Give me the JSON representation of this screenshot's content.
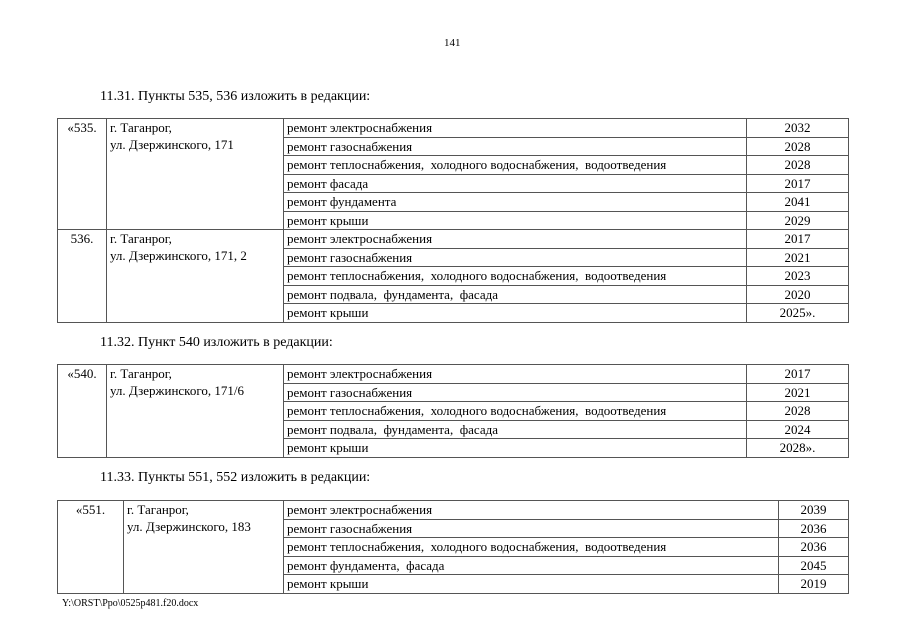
{
  "page_number": "141",
  "footer": "Y:\\ORST\\Ppo\\0525p481.f20.docx",
  "sections": [
    {
      "heading": "11.31. Пункты 535, 536 изложить в редакции:",
      "items": [
        {
          "num": "«535.",
          "address": [
            "г. Таганрог,",
            "ул. Дзержинского, 171"
          ],
          "works": [
            {
              "name": "ремонт электроснабжения",
              "year": "2032"
            },
            {
              "name": "ремонт газоснабжения",
              "year": "2028"
            },
            {
              "name": "ремонт теплоснабжения,  холодного водоснабжения,  водоотведения",
              "year": "2028"
            },
            {
              "name": "ремонт фасада",
              "year": "2017"
            },
            {
              "name": "ремонт фундамента",
              "year": "2041"
            },
            {
              "name": "ремонт крыши",
              "year": "2029"
            }
          ]
        },
        {
          "num": "536.",
          "address": [
            "г. Таганрог,",
            "ул. Дзержинского, 171, 2"
          ],
          "works": [
            {
              "name": "ремонт электроснабжения",
              "year": "2017"
            },
            {
              "name": "ремонт газоснабжения",
              "year": "2021"
            },
            {
              "name": "ремонт теплоснабжения,  холодного водоснабжения,  водоотведения",
              "year": "2023"
            },
            {
              "name": "ремонт подвала,  фундамента,  фасада",
              "year": "2020"
            },
            {
              "name": "ремонт крыши",
              "year": "2025»."
            }
          ]
        }
      ]
    },
    {
      "heading": "11.32. Пункт 540 изложить в редакции:",
      "items": [
        {
          "num": "«540.",
          "address": [
            "г. Таганрог,",
            "ул. Дзержинского, 171/6"
          ],
          "works": [
            {
              "name": "ремонт электроснабжения",
              "year": "2017"
            },
            {
              "name": "ремонт газоснабжения",
              "year": "2021"
            },
            {
              "name": "ремонт теплоснабжения,  холодного водоснабжения,  водоотведения",
              "year": "2028"
            },
            {
              "name": "ремонт подвала,  фундамента,  фасада",
              "year": "2024"
            },
            {
              "name": "ремонт крыши",
              "year": "2028»."
            }
          ]
        }
      ]
    },
    {
      "heading": "11.33. Пункты 551, 552 изложить в редакции:",
      "items": [
        {
          "num": "«551.",
          "address": [
            "г. Таганрог,",
            "ул. Дзержинского, 183"
          ],
          "works": [
            {
              "name": "ремонт электроснабжения",
              "year": "2039"
            },
            {
              "name": "ремонт газоснабжения",
              "year": "2036"
            },
            {
              "name": "ремонт теплоснабжения,  холодного водоснабжения,  водоотведения",
              "year": "2036"
            },
            {
              "name": "ремонт фундамента,  фасада",
              "year": "2045"
            },
            {
              "name": "ремонт крыши",
              "year": "2019"
            }
          ]
        }
      ]
    }
  ]
}
